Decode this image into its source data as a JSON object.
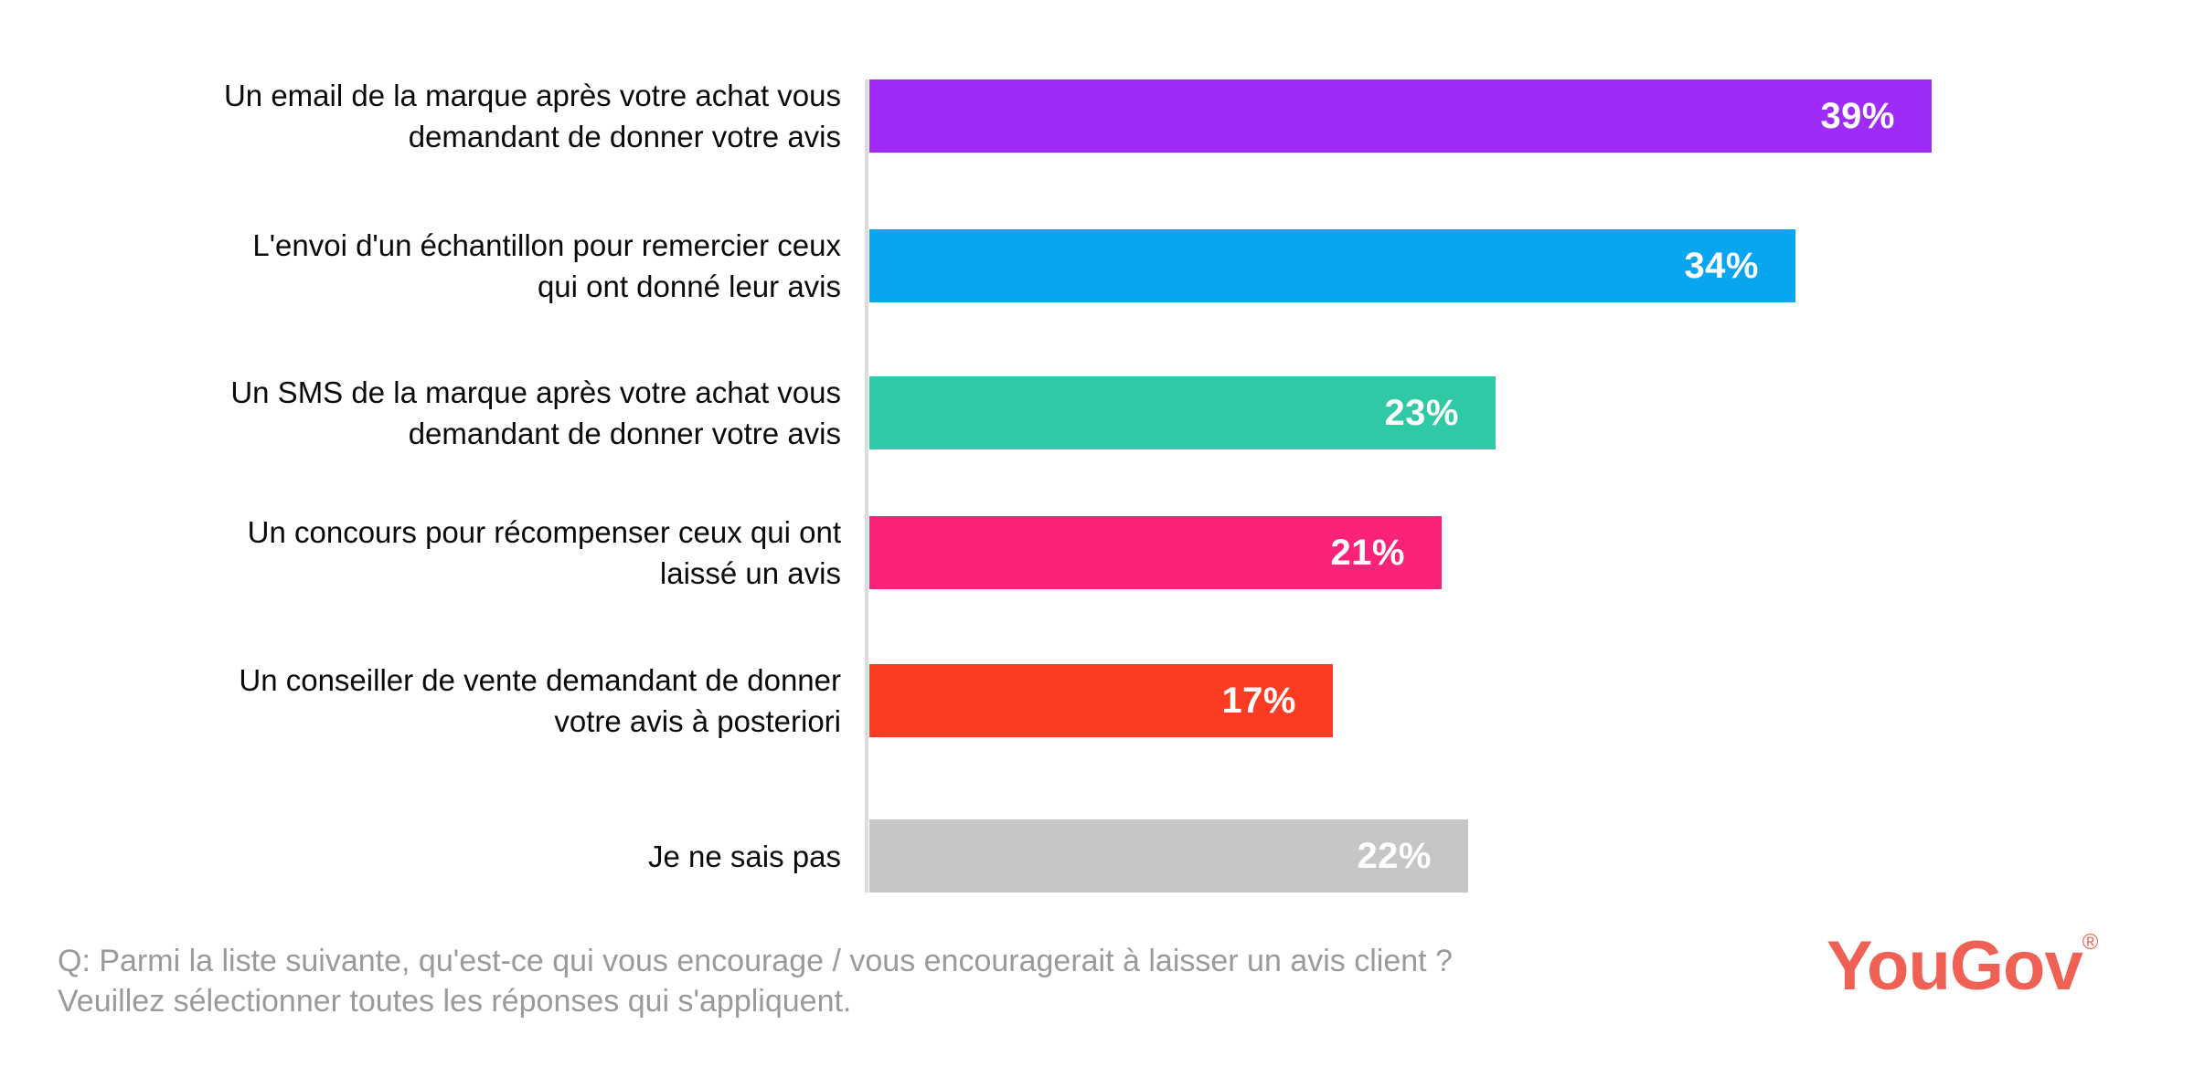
{
  "chart_data": {
    "type": "bar",
    "orientation": "horizontal",
    "title": "",
    "xlabel": "",
    "ylabel": "",
    "unit": "%",
    "xlim": [
      0,
      39
    ],
    "grid": false,
    "legend": false,
    "value_labels_position": "inside-end",
    "categories": [
      "Un email de la marque après votre achat vous demandant de donner votre avis",
      "L'envoi d'un échantillon pour remercier ceux qui ont donné leur avis",
      "Un SMS de la marque après votre achat vous demandant de donner votre avis",
      "Un concours pour récompenser ceux qui ont laissé un avis",
      "Un conseiller de vente demandant de donner votre avis à posteriori",
      "Je ne sais pas"
    ],
    "category_lines": [
      [
        "Un email de la marque après votre achat vous",
        "demandant de donner votre avis"
      ],
      [
        "L'envoi d'un échantillon pour remercier ceux",
        "qui ont donné leur avis"
      ],
      [
        "Un SMS de la marque après votre achat vous",
        "demandant de donner votre avis"
      ],
      [
        "Un concours pour récompenser ceux qui ont",
        "laissé un avis"
      ],
      [
        "Un conseiller de vente demandant de donner",
        "votre avis à posteriori"
      ],
      [
        "Je ne sais pas"
      ]
    ],
    "values": [
      39,
      34,
      23,
      21,
      17,
      22
    ],
    "value_labels": [
      "39%",
      "34%",
      "23%",
      "21%",
      "17%",
      "22%"
    ],
    "bar_colors": [
      "#9e2bf7",
      "#09a5ee",
      "#2fc9a5",
      "#fb2379",
      "#fb3b22",
      "#c6c6c6"
    ]
  },
  "footer": {
    "question_line1": "Q: Parmi la liste suivante, qu'est-ce qui vous encourage / vous encouragerait à laisser un avis client ?",
    "question_line2": "Veuillez sélectionner toutes les réponses qui s'appliquent.",
    "logo_text": "YouGov",
    "logo_registered": "®"
  },
  "colors": {
    "background": "#ffffff",
    "axis_line": "#dcdcdc",
    "label_text": "#0a0a0a",
    "value_text": "#ffffff",
    "question_text": "#9a9a9a",
    "logo": "#ef6155"
  }
}
